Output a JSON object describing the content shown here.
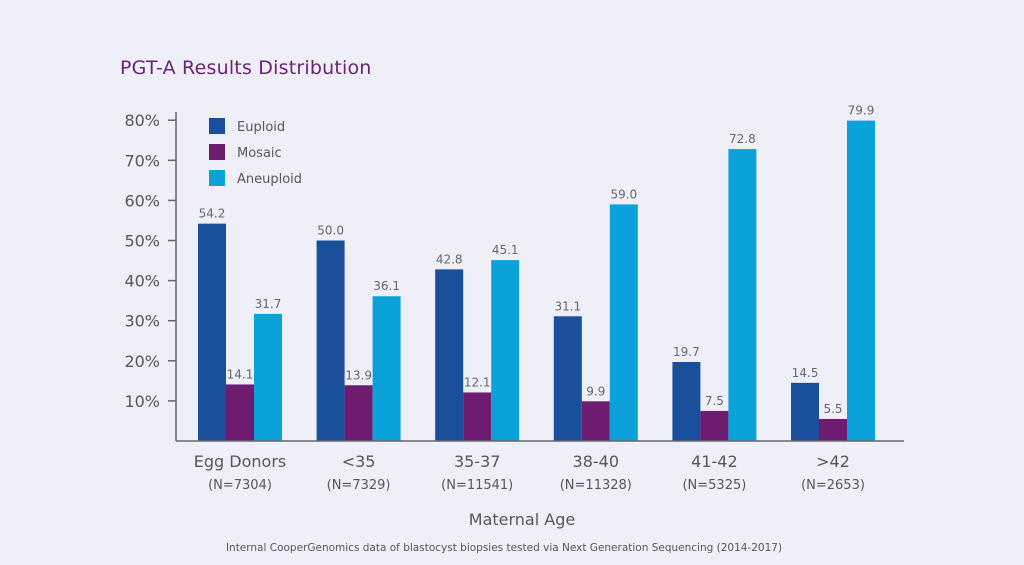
{
  "chart_data": {
    "type": "bar",
    "title": "PGT-A Results Distribution",
    "xlabel": "Maternal Age",
    "ylabel": "",
    "ylim": [
      0,
      80
    ],
    "yticks": [
      "10%",
      "20%",
      "30%",
      "40%",
      "50%",
      "60%",
      "70%",
      "80%"
    ],
    "categories": [
      "Egg Donors",
      "<35",
      "35-37",
      "38-40",
      "41-42",
      ">42"
    ],
    "sample_sizes": [
      "(N=7304)",
      "(N=7329)",
      "(N=11541)",
      "(N=11328)",
      "(N=5325)",
      "(N=2653)"
    ],
    "series": [
      {
        "name": "Euploid",
        "color": "#1a4f9c",
        "values": [
          54.2,
          50.0,
          42.8,
          31.1,
          19.7,
          14.5
        ],
        "labels": [
          "54.2",
          "50.0",
          "42.8",
          "31.1",
          "19.7",
          "14.5"
        ]
      },
      {
        "name": "Mosaic",
        "color": "#6e1c70",
        "values": [
          14.1,
          13.9,
          12.1,
          9.9,
          7.5,
          5.5
        ],
        "labels": [
          "14.1",
          "13.9",
          "12.1",
          "9.9",
          "7.5",
          "5.5"
        ]
      },
      {
        "name": "Aneuploid",
        "color": "#0aa2d9",
        "values": [
          31.7,
          36.1,
          45.1,
          59.0,
          72.8,
          79.9
        ],
        "labels": [
          "31.7",
          "36.1",
          "45.1",
          "59.0",
          "72.8",
          "79.9"
        ]
      }
    ],
    "legend_position": "top-left",
    "grid": false,
    "footnote": "Internal CooperGenomics data of blastocyst biopsies tested via Next Generation Sequencing (2014-2017)"
  }
}
